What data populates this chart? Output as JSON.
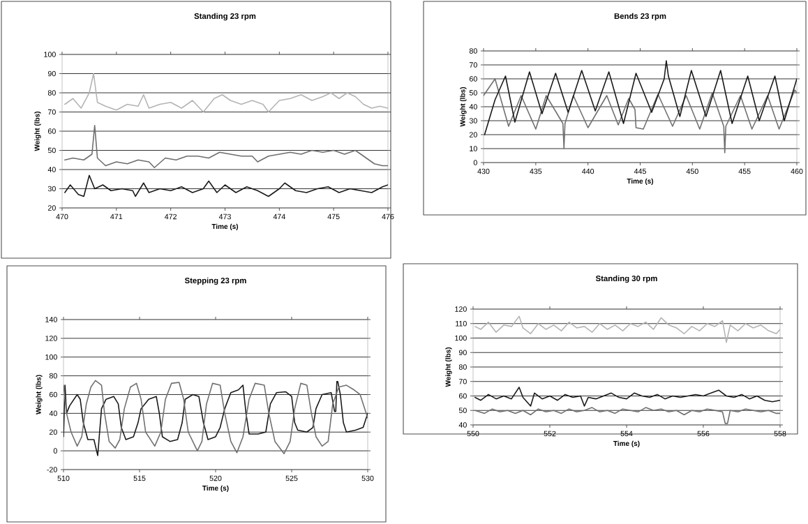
{
  "chart_data": [
    {
      "type": "line",
      "title": "Standing 23 rpm",
      "xlabel": "Time (s)",
      "ylabel": "Weight (lbs)",
      "xlim": [
        470,
        476
      ],
      "ylim": [
        20,
        100
      ],
      "xticks": [
        470,
        471,
        472,
        473,
        474,
        475,
        476
      ],
      "yticks": [
        20,
        30,
        40,
        50,
        60,
        70,
        80,
        90,
        100
      ],
      "grid": "y",
      "series": [
        {
          "color": "#b4b4b4",
          "x": [
            470.05,
            470.2,
            470.35,
            470.5,
            470.58,
            470.65,
            470.8,
            471.0,
            471.2,
            471.4,
            471.5,
            471.6,
            471.8,
            472.0,
            472.2,
            472.4,
            472.6,
            472.8,
            472.95,
            473.1,
            473.3,
            473.5,
            473.7,
            473.8,
            474.0,
            474.2,
            474.4,
            474.6,
            474.8,
            474.95,
            475.1,
            475.25,
            475.4,
            475.55,
            475.7,
            475.85,
            476
          ],
          "values": [
            74,
            77,
            72,
            80,
            90,
            75,
            73,
            71,
            74,
            73,
            79,
            72,
            74,
            75,
            72,
            76,
            70,
            77,
            79,
            76,
            74,
            76,
            74,
            70,
            76,
            77,
            79,
            76,
            78,
            80,
            77,
            80,
            78,
            74,
            72,
            73,
            72
          ]
        },
        {
          "color": "#6e6e6e",
          "x": [
            470.05,
            470.2,
            470.4,
            470.55,
            470.6,
            470.65,
            470.8,
            471.0,
            471.2,
            471.4,
            471.6,
            471.7,
            471.9,
            472.1,
            472.3,
            472.5,
            472.7,
            472.9,
            473.1,
            473.3,
            473.5,
            473.6,
            473.8,
            474.0,
            474.2,
            474.4,
            474.6,
            474.8,
            475.0,
            475.2,
            475.4,
            475.6,
            475.75,
            475.9,
            476
          ],
          "values": [
            45,
            46,
            45,
            48,
            63,
            46,
            42,
            44,
            43,
            45,
            44,
            41,
            46,
            45,
            47,
            47,
            46,
            49,
            48,
            47,
            47,
            44,
            47,
            48,
            49,
            48,
            50,
            49,
            50,
            48,
            50,
            46,
            43,
            42,
            42
          ]
        },
        {
          "color": "#1a1a1a",
          "x": [
            470.05,
            470.15,
            470.3,
            470.4,
            470.5,
            470.6,
            470.75,
            470.9,
            471.1,
            471.3,
            471.35,
            471.5,
            471.6,
            471.8,
            472.0,
            472.2,
            472.4,
            472.6,
            472.7,
            472.85,
            473.0,
            473.2,
            473.4,
            473.6,
            473.8,
            474.0,
            474.1,
            474.3,
            474.5,
            474.7,
            474.9,
            475.1,
            475.3,
            475.5,
            475.7,
            475.9,
            476
          ],
          "values": [
            28,
            32,
            27,
            26,
            37,
            30,
            32,
            29,
            30,
            29,
            26,
            33,
            28,
            30,
            29,
            31,
            28,
            30,
            34,
            28,
            32,
            28,
            31,
            29,
            26,
            30,
            33,
            29,
            28,
            30,
            31,
            28,
            30,
            29,
            28,
            31,
            32
          ]
        }
      ]
    },
    {
      "type": "line",
      "title": "Bends 23 rpm",
      "xlabel": "Time (s)",
      "ylabel": "Weight (lbs)",
      "xlim": [
        430,
        460
      ],
      "ylim": [
        0,
        80
      ],
      "xticks": [
        430,
        435,
        440,
        445,
        450,
        455,
        460
      ],
      "yticks": [
        0,
        10,
        20,
        30,
        40,
        50,
        60,
        70,
        80
      ],
      "grid": "y",
      "series": [
        {
          "color": "#707070",
          "x": [
            430,
            431.1,
            432.4,
            433.6,
            435,
            436,
            437.6,
            437.7,
            437.8,
            438.6,
            440,
            441.8,
            442.9,
            443.9,
            444.5,
            444.6,
            445.3,
            446.7,
            448.1,
            449.4,
            450.7,
            451.9,
            453.0,
            453.1,
            453.2,
            454.6,
            455.7,
            457.2,
            458.3,
            459.8,
            460
          ],
          "values": [
            48,
            60,
            26,
            48,
            24,
            48,
            28,
            10,
            28,
            48,
            25,
            48,
            27,
            46,
            38,
            25,
            24,
            49,
            26,
            48,
            24,
            50,
            26,
            7,
            26,
            48,
            24,
            48,
            24,
            52,
            50
          ]
        },
        {
          "color": "#1a1a1a",
          "x": [
            430.1,
            431.1,
            432.1,
            433,
            434.4,
            435.6,
            436.9,
            438.1,
            439.4,
            440.7,
            442,
            443.4,
            444.6,
            446.1,
            447.3,
            447.5,
            447.7,
            448.8,
            449.9,
            451.3,
            452.7,
            453.8,
            455.3,
            456.4,
            457.9,
            458.8,
            460
          ],
          "values": [
            20,
            45,
            62,
            29,
            65,
            35,
            64,
            36,
            66,
            37,
            65,
            28,
            64,
            36,
            60,
            73,
            62,
            33,
            66,
            33,
            66,
            28,
            62,
            30,
            62,
            30,
            60
          ]
        }
      ]
    },
    {
      "type": "line",
      "title": "Stepping 23 rpm",
      "xlabel": "Time (s)",
      "ylabel": "Weight (lbs)",
      "xlim": [
        510,
        530
      ],
      "ylim": [
        -20,
        140
      ],
      "xticks": [
        510,
        515,
        520,
        525,
        530
      ],
      "yticks": [
        -20,
        0,
        20,
        40,
        60,
        80,
        100,
        120,
        140
      ],
      "grid": "y",
      "series": [
        {
          "color": "#1a1a1a",
          "x": [
            510,
            510.1,
            510.2,
            510.4,
            510.9,
            511.1,
            511.3,
            511.6,
            512,
            512.25,
            512.35,
            512.5,
            512.8,
            513.3,
            513.6,
            513.8,
            514.1,
            514.6,
            514.9,
            515.1,
            515.6,
            516.1,
            516.3,
            516.5,
            517.0,
            517.5,
            517.8,
            518.0,
            518.5,
            518.9,
            519.2,
            519.5,
            520.0,
            520.3,
            520.6,
            521.0,
            521.5,
            521.8,
            522.0,
            522.2,
            522.8,
            523.3,
            523.6,
            524.0,
            524.6,
            525.0,
            525.2,
            525.4,
            526.0,
            526.4,
            526.6,
            527.0,
            527.6,
            527.82,
            527.9,
            527.97,
            528.03,
            528.2,
            528.4,
            528.6,
            529.2,
            529.7,
            530
          ],
          "values": [
            15,
            70,
            40,
            48,
            60,
            55,
            30,
            12,
            12,
            -5,
            15,
            45,
            55,
            58,
            50,
            25,
            12,
            15,
            30,
            45,
            55,
            58,
            40,
            15,
            10,
            12,
            30,
            55,
            60,
            58,
            30,
            12,
            15,
            25,
            45,
            62,
            65,
            70,
            40,
            18,
            18,
            20,
            50,
            62,
            63,
            58,
            30,
            22,
            20,
            25,
            45,
            60,
            62,
            42,
            42,
            74,
            74,
            60,
            30,
            20,
            22,
            25,
            40
          ]
        },
        {
          "color": "#707070",
          "x": [
            510,
            510.2,
            510.5,
            510.9,
            511.2,
            511.5,
            511.8,
            512.1,
            512.5,
            512.7,
            513.0,
            513.4,
            513.7,
            514.0,
            514.4,
            514.8,
            515.1,
            515.4,
            516.0,
            516.4,
            516.7,
            517.1,
            517.6,
            517.9,
            518.2,
            518.8,
            519.1,
            519.4,
            519.8,
            520.3,
            520.6,
            521.0,
            521.4,
            521.8,
            522.2,
            522.6,
            523.2,
            523.5,
            523.9,
            524.5,
            524.9,
            525.2,
            525.6,
            526.0,
            526.3,
            526.6,
            527.0,
            527.4,
            527.7,
            528.1,
            528.6,
            529.1,
            529.5,
            530
          ],
          "values": [
            70,
            40,
            20,
            5,
            15,
            50,
            68,
            75,
            70,
            40,
            10,
            3,
            12,
            45,
            68,
            72,
            55,
            20,
            5,
            20,
            55,
            72,
            73,
            55,
            20,
            0,
            10,
            50,
            72,
            70,
            40,
            10,
            -2,
            15,
            55,
            72,
            70,
            40,
            10,
            -3,
            10,
            45,
            72,
            70,
            40,
            15,
            5,
            10,
            50,
            68,
            70,
            65,
            60,
            35
          ]
        }
      ]
    },
    {
      "type": "line",
      "title": "Standing 30 rpm",
      "xlabel": "Time (s)",
      "ylabel": "Weight (lbs)",
      "xlim": [
        550,
        558
      ],
      "ylim": [
        40,
        120
      ],
      "xticks": [
        550,
        552,
        554,
        556,
        558
      ],
      "yticks": [
        40,
        50,
        60,
        70,
        80,
        90,
        100,
        110,
        120
      ],
      "grid": "y",
      "series": [
        {
          "color": "#b4b4b4",
          "x": [
            550.05,
            550.2,
            550.4,
            550.6,
            550.8,
            551.0,
            551.2,
            551.3,
            551.5,
            551.7,
            551.9,
            552.1,
            552.3,
            552.5,
            552.7,
            552.9,
            553.1,
            553.3,
            553.5,
            553.7,
            553.9,
            554.1,
            554.3,
            554.5,
            554.7,
            554.9,
            555.1,
            555.3,
            555.5,
            555.7,
            555.9,
            556.1,
            556.3,
            556.5,
            556.6,
            556.7,
            556.9,
            557.1,
            557.3,
            557.5,
            557.7,
            557.9,
            558
          ],
          "values": [
            108,
            106,
            111,
            104,
            109,
            108,
            115,
            107,
            103,
            110,
            106,
            109,
            105,
            111,
            107,
            108,
            104,
            110,
            106,
            109,
            105,
            110,
            108,
            111,
            106,
            114,
            109,
            107,
            103,
            108,
            105,
            110,
            108,
            112,
            97,
            109,
            105,
            110,
            107,
            109,
            105,
            103,
            106
          ]
        },
        {
          "color": "#1a1a1a",
          "x": [
            550.05,
            550.2,
            550.4,
            550.6,
            550.8,
            551.0,
            551.2,
            551.3,
            551.5,
            551.6,
            551.8,
            552.0,
            552.2,
            552.4,
            552.6,
            552.8,
            552.9,
            553.0,
            553.2,
            553.4,
            553.6,
            553.8,
            554.0,
            554.2,
            554.4,
            554.6,
            554.8,
            555.0,
            555.2,
            555.4,
            555.6,
            555.8,
            556.0,
            556.2,
            556.4,
            556.6,
            556.8,
            557.0,
            557.2,
            557.4,
            557.6,
            557.8,
            558
          ],
          "values": [
            59,
            57,
            61,
            58,
            60,
            58,
            66,
            59,
            53,
            62,
            58,
            60,
            57,
            61,
            59,
            60,
            53,
            59,
            58,
            60,
            62,
            59,
            58,
            62,
            60,
            59,
            61,
            58,
            60,
            59,
            60,
            61,
            60,
            62,
            64,
            60,
            59,
            61,
            58,
            60,
            57,
            56,
            57
          ]
        },
        {
          "color": "#6e6e6e",
          "x": [
            550.05,
            550.3,
            550.5,
            550.7,
            550.9,
            551.1,
            551.3,
            551.5,
            551.7,
            551.9,
            552.1,
            552.3,
            552.5,
            552.7,
            552.9,
            553.1,
            553.3,
            553.5,
            553.7,
            553.9,
            554.1,
            554.3,
            554.5,
            554.7,
            554.9,
            555.1,
            555.3,
            555.5,
            555.7,
            555.9,
            556.1,
            556.3,
            556.5,
            556.57,
            556.63,
            556.7,
            556.9,
            557.1,
            557.3,
            557.5,
            557.7,
            557.9,
            558
          ],
          "values": [
            50,
            48,
            51,
            49,
            50,
            48,
            50,
            47,
            51,
            49,
            50,
            48,
            51,
            49,
            50,
            52,
            49,
            50,
            48,
            51,
            50,
            49,
            52,
            50,
            51,
            49,
            50,
            47,
            50,
            49,
            51,
            50,
            49,
            41,
            41,
            50,
            49,
            51,
            50,
            49,
            50,
            48,
            48
          ]
        }
      ]
    }
  ]
}
